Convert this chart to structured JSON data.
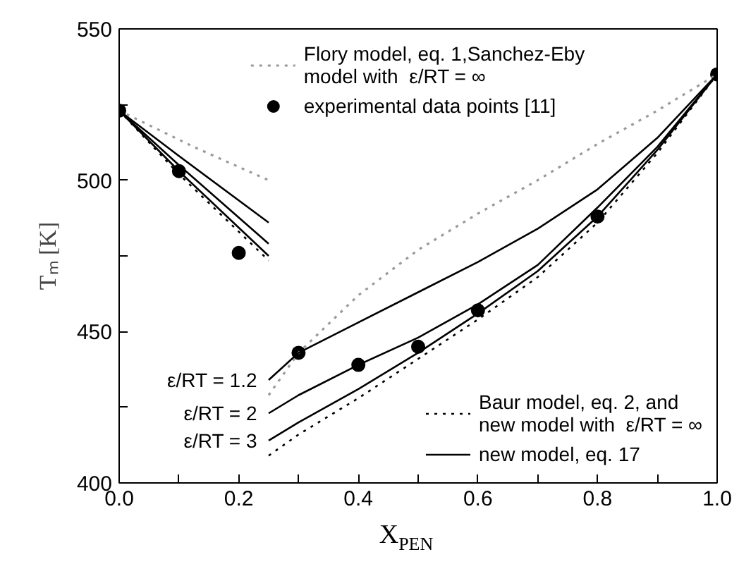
{
  "chart_data": {
    "type": "line",
    "xlabel": "X$_{PEN}$",
    "ylabel": "Tₘ [K]",
    "xlim": [
      0,
      1
    ],
    "ylim": [
      400,
      550
    ],
    "xticks": [
      {
        "value": 0,
        "label": "0.0"
      },
      {
        "value": 0.1,
        "label": null
      },
      {
        "value": 0.2,
        "label": "0.2"
      },
      {
        "value": 0.3,
        "label": null
      },
      {
        "value": 0.4,
        "label": "0.4"
      },
      {
        "value": 0.5,
        "label": null
      },
      {
        "value": 0.6,
        "label": "0.6"
      },
      {
        "value": 0.7,
        "label": null
      },
      {
        "value": 0.8,
        "label": "0.8"
      },
      {
        "value": 0.9,
        "label": null
      },
      {
        "value": 1,
        "label": "1.0"
      }
    ],
    "yticks": [
      400,
      {
        "value": 425,
        "label": null
      },
      450,
      {
        "value": 475,
        "label": null
      },
      500,
      {
        "value": 525,
        "label": null
      },
      550
    ],
    "grid": false,
    "legend": [
      "top",
      "bottom right"
    ],
    "series": [
      {
        "name": "Flory model, eq. 1,Sanchez-Eby\nmodel with  ε/RT = ∞",
        "color": "#9a9a9a",
        "line_style": "dotted",
        "x": [
          0,
          0.125,
          0.25
        ],
        "values": [
          523,
          511,
          500
        ]
      },
      {
        "type": "scatter",
        "marker": "circle",
        "name": "experimental data points [11]",
        "color": "#000000",
        "x": [
          0,
          0.1,
          0.2,
          0.3,
          0.4,
          0.5,
          0.6,
          0.8,
          1.0
        ],
        "values": [
          523,
          503,
          476,
          443,
          439,
          445,
          457,
          488,
          535
        ]
      },
      {
        "name": "Baur model, eq. 2, and\nnew model with  ε/RT = ∞",
        "color": "#000000",
        "line_style": "dotted",
        "x": [
          0,
          0.1,
          0.25
        ],
        "values": [
          523,
          502,
          473.5
        ]
      },
      {
        "name": "new model, eq. 17",
        "color": "#000000",
        "line_style": "solid",
        "x": [
          0,
          0.1,
          0.25
        ],
        "values": [
          523,
          508,
          486
        ]
      },
      {
        "color": "#9a9a9a",
        "line_style": "dotted",
        "x": [
          0.25,
          0.3,
          0.4,
          0.5,
          0.6,
          0.7,
          0.8,
          0.9,
          1.0
        ],
        "values": [
          429,
          443,
          462,
          477,
          489,
          500,
          512,
          523,
          535
        ]
      },
      {
        "color": "#000000",
        "line_style": "solid",
        "x": [
          0,
          0.1,
          0.25
        ],
        "values": [
          523,
          505,
          479
        ]
      },
      {
        "color": "#000000",
        "line_style": "solid",
        "x": [
          0,
          0.1,
          0.25
        ],
        "values": [
          523,
          503,
          475
        ]
      },
      {
        "color": "#000000",
        "line_style": "solid",
        "x": [
          0.25,
          0.3,
          0.4,
          0.5,
          0.6,
          0.7,
          0.8,
          0.9,
          1.0
        ],
        "values": [
          434,
          443,
          453,
          463,
          473,
          484,
          497,
          514,
          535
        ]
      },
      {
        "color": "#000000",
        "line_style": "solid",
        "x": [
          0.25,
          0.3,
          0.4,
          0.5,
          0.6,
          0.7,
          0.8,
          0.9,
          1.0
        ],
        "values": [
          423,
          429,
          439,
          448,
          459,
          472,
          491,
          511,
          535
        ]
      },
      {
        "color": "#000000",
        "line_style": "solid",
        "x": [
          0.25,
          0.3,
          0.4,
          0.5,
          0.6,
          0.7,
          0.8,
          0.9,
          1.0
        ],
        "values": [
          414,
          420,
          431,
          443,
          456,
          470,
          488,
          510,
          535
        ]
      },
      {
        "color": "#000000",
        "line_style": "dotted",
        "x": [
          0.25,
          0.3,
          0.4,
          0.5,
          0.6,
          0.7,
          0.8,
          0.9,
          1.0
        ],
        "values": [
          409,
          416,
          428,
          441,
          454,
          468,
          486,
          509,
          535
        ]
      }
    ],
    "annotations": [
      "ε/RT = 1.2",
      "ε/RT = 2",
      "ε/RT = 3"
    ]
  }
}
